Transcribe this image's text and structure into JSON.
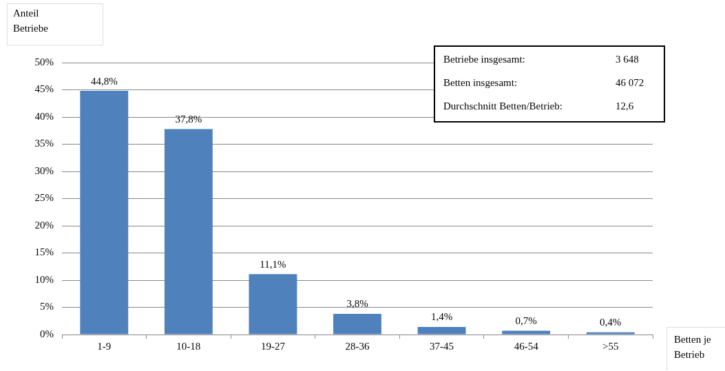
{
  "chart_data": {
    "type": "bar",
    "ylabel": "Anteil\nBetriebe",
    "xlabel": "Betten je\nBetrieb",
    "categories": [
      "1-9",
      "10-18",
      "19-27",
      "28-36",
      "37-45",
      "46-54",
      ">55"
    ],
    "values": [
      44.8,
      37.8,
      11.1,
      3.8,
      1.4,
      0.7,
      0.4
    ],
    "value_labels": [
      "44,8%",
      "37,8%",
      "11,1%",
      "3,8%",
      "1,4%",
      "0,7%",
      "0,4%"
    ],
    "color": "#4f81bd",
    "ylim": [
      0,
      50
    ],
    "yticks": [
      {
        "value": 0,
        "label": "0%"
      },
      {
        "value": 5,
        "label": "5%"
      },
      {
        "value": 10,
        "label": "10%"
      },
      {
        "value": 15,
        "label": "15%"
      },
      {
        "value": 20,
        "label": "20%"
      },
      {
        "value": 25,
        "label": "25%"
      },
      {
        "value": 30,
        "label": "30%"
      },
      {
        "value": 35,
        "label": "35%"
      },
      {
        "value": 40,
        "label": "40%"
      },
      {
        "value": 45,
        "label": "45%"
      },
      {
        "value": 50,
        "label": "50%"
      }
    ],
    "grid": "y",
    "legend": false,
    "annotations": [
      "Betriebe insgesamt:",
      "3 648",
      "Betten insgesamt:",
      "46 072",
      "Durchschnitt Betten/Betrieb:",
      "12,6"
    ]
  }
}
